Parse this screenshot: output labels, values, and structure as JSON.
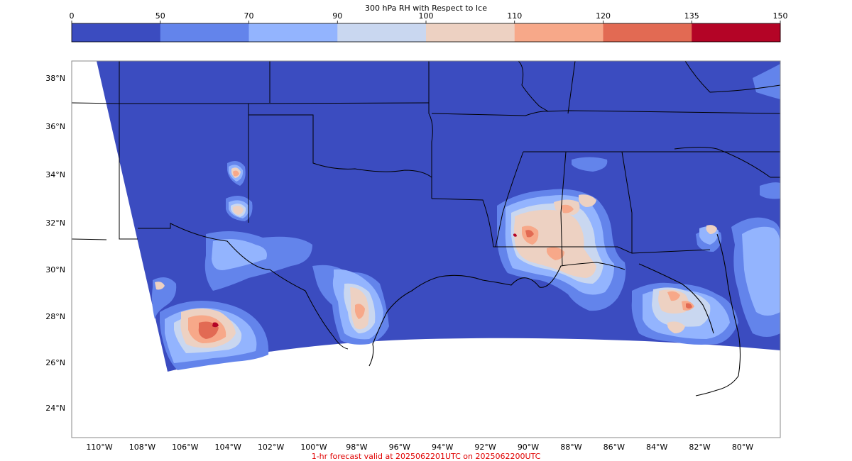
{
  "colorbar": {
    "title": "300 hPa RH with Respect to Ice",
    "ticks": [
      "0",
      "50",
      "70",
      "90",
      "100",
      "110",
      "120",
      "135",
      "150"
    ],
    "colors": [
      "#3b4cc0",
      "#6384eb",
      "#93b4fe",
      "#c9d7f0",
      "#edd1c2",
      "#f7a889",
      "#e26a53",
      "#b40426"
    ]
  },
  "map": {
    "lat_labels": [
      "38°N",
      "36°N",
      "34°N",
      "32°N",
      "30°N",
      "28°N",
      "26°N",
      "24°N"
    ],
    "lon_labels": [
      "110°W",
      "108°W",
      "106°W",
      "104°W",
      "102°W",
      "100°W",
      "98°W",
      "96°W",
      "94°W",
      "92°W",
      "90°W",
      "88°W",
      "86°W",
      "84°W",
      "82°W",
      "80°W"
    ],
    "background_color": "#3b4cc0",
    "outside_color": "#ffffff",
    "border_color": "#000000"
  },
  "footer": {
    "text": "1-hr forecast valid at 2025062201UTC on 2025062200UTC",
    "color": "#e00000"
  }
}
